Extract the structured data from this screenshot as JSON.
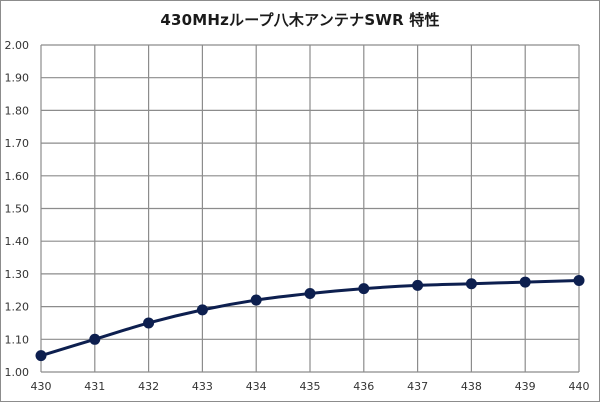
{
  "chart_data": {
    "type": "line",
    "title": "430MHzループ八木アンテナSWR 特性",
    "xlabel": "",
    "ylabel": "",
    "x": [
      430,
      431,
      432,
      433,
      434,
      435,
      436,
      437,
      438,
      439,
      440
    ],
    "series": [
      {
        "name": "SWR",
        "values": [
          1.05,
          1.1,
          1.15,
          1.19,
          1.22,
          1.24,
          1.255,
          1.265,
          1.27,
          1.275,
          1.28
        ],
        "color": "#0d1f4f",
        "marker": "circle",
        "smooth": true
      }
    ],
    "ylim": [
      1.0,
      2.0
    ],
    "xlim": [
      430,
      440
    ],
    "yticks": [
      "1.00",
      "1.10",
      "1.20",
      "1.30",
      "1.40",
      "1.50",
      "1.60",
      "1.70",
      "1.80",
      "1.90",
      "2.00"
    ],
    "xticks": [
      "430",
      "431",
      "432",
      "433",
      "434",
      "435",
      "436",
      "437",
      "438",
      "439",
      "440"
    ],
    "grid": true,
    "legend": "none"
  },
  "colors": {
    "line": "#0d1f4f",
    "grid": "#8c8c8c",
    "frame": "#8c8c8c"
  }
}
